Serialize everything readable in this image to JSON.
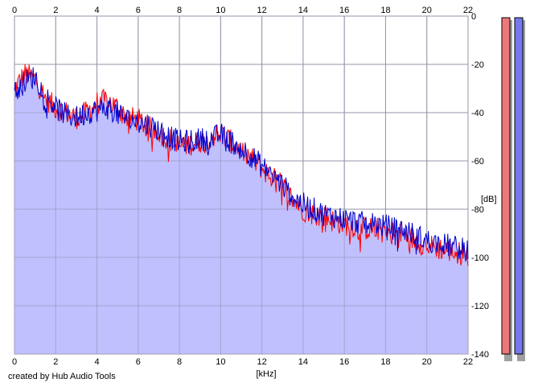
{
  "chart_data": {
    "type": "area",
    "xlabel": "[kHz]",
    "ylabel": "[dB]",
    "xlim": [
      0,
      22
    ],
    "ylim": [
      -140,
      0
    ],
    "x_ticks": [
      "0",
      "2",
      "4",
      "6",
      "8",
      "10",
      "12",
      "14",
      "16",
      "18",
      "20",
      "22"
    ],
    "y_ticks": [
      "0",
      "-20",
      "-40",
      "-60",
      "-80",
      "-100",
      "-120",
      "-140"
    ],
    "grid": true,
    "series": [
      {
        "color": "#ff0000",
        "x": [
          0,
          0.5,
          1,
          1.5,
          2,
          2.5,
          3,
          3.5,
          4,
          4.5,
          5,
          5.5,
          6,
          6.5,
          7,
          7.5,
          8,
          8.5,
          9,
          9.5,
          10,
          10.5,
          11,
          11.5,
          12,
          12.5,
          13,
          13.5,
          14,
          14.5,
          15,
          15.5,
          16,
          16.5,
          17,
          17.5,
          18,
          18.5,
          19,
          19.5,
          20,
          20.5,
          21,
          21.5,
          22
        ],
        "y": [
          -30,
          -24,
          -26,
          -34,
          -38,
          -40,
          -42,
          -40,
          -36,
          -35,
          -38,
          -42,
          -43,
          -46,
          -48,
          -51,
          -54,
          -53,
          -52,
          -50,
          -49,
          -52,
          -56,
          -59,
          -63,
          -67,
          -70,
          -76,
          -80,
          -82,
          -83,
          -85,
          -86,
          -87,
          -88,
          -88,
          -89,
          -90,
          -91,
          -93,
          -95,
          -96,
          -97,
          -98,
          -99
        ]
      },
      {
        "color": "#0000cc",
        "x": [
          0,
          0.5,
          1,
          1.5,
          2,
          2.5,
          3,
          3.5,
          4,
          4.5,
          5,
          5.5,
          6,
          6.5,
          7,
          7.5,
          8,
          8.5,
          9,
          9.5,
          10,
          10.5,
          11,
          11.5,
          12,
          12.5,
          13,
          13.5,
          14,
          14.5,
          15,
          15.5,
          16,
          16.5,
          17,
          17.5,
          18,
          18.5,
          19,
          19.5,
          20,
          20.5,
          21,
          21.5,
          22
        ],
        "y": [
          -32,
          -27,
          -25,
          -33,
          -38,
          -41,
          -42,
          -40,
          -39,
          -38,
          -40,
          -43,
          -44,
          -45,
          -47,
          -50,
          -52,
          -52,
          -51,
          -51,
          -49,
          -52,
          -55,
          -58,
          -62,
          -66,
          -70,
          -75,
          -78,
          -80,
          -82,
          -83,
          -84,
          -85,
          -86,
          -86,
          -87,
          -88,
          -89,
          -91,
          -93,
          -94,
          -95,
          -96,
          -97
        ]
      }
    ],
    "fill_color": "#c0c0ff",
    "meters": [
      {
        "color": "#ee7777"
      },
      {
        "color": "#7777ee"
      }
    ]
  },
  "footer": {
    "credit": "created by Hub Audio Tools"
  }
}
